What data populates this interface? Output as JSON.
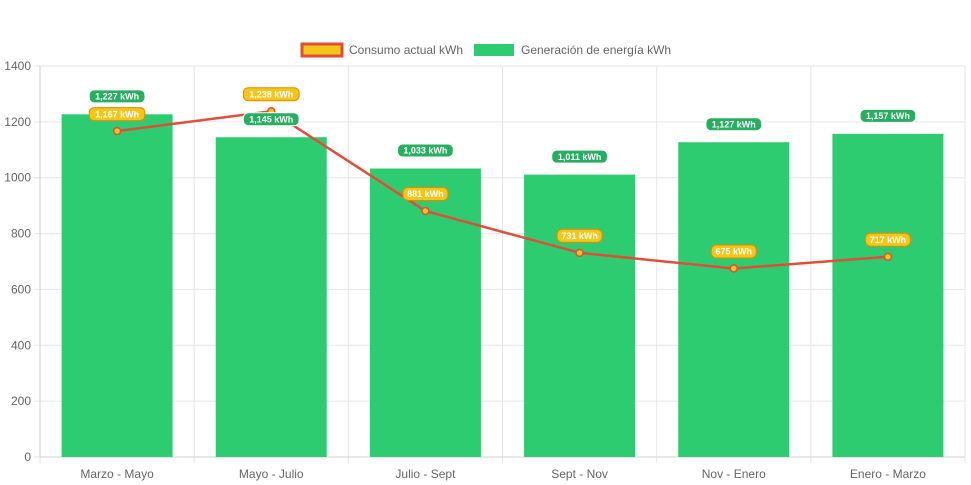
{
  "chart_data": {
    "type": "bar",
    "categories": [
      "Marzo - Mayo",
      "Mayo - Julio",
      "Julio - Sept",
      "Sept - Nov",
      "Nov - Enero",
      "Enero - Marzo"
    ],
    "ylim": [
      0,
      1400
    ],
    "yticks": [
      0,
      200,
      400,
      600,
      800,
      1000,
      1200,
      1400
    ],
    "grid": true,
    "legend_position": "top-center",
    "unit": "kWh",
    "series": [
      {
        "name": "Consumo actual kWh",
        "type": "line",
        "color": "#e04e39",
        "fill_color": "#f5c518",
        "values": [
          1167,
          1238,
          881,
          731,
          675,
          717
        ],
        "labels": [
          "1,167 kWh",
          "1,238 kWh",
          "881 kWh",
          "731 kWh",
          "675 kWh",
          "717 kWh"
        ]
      },
      {
        "name": "Generación de energía kWh",
        "type": "bar",
        "color": "#2ecc71",
        "label_color": "#27ae60",
        "values": [
          1227,
          1145,
          1033,
          1011,
          1127,
          1157
        ],
        "labels": [
          "1,227 kWh",
          "1,145 kWh",
          "1,033 kWh",
          "1,011 kWh",
          "1,127 kWh",
          "1,157 kWh"
        ]
      }
    ]
  }
}
